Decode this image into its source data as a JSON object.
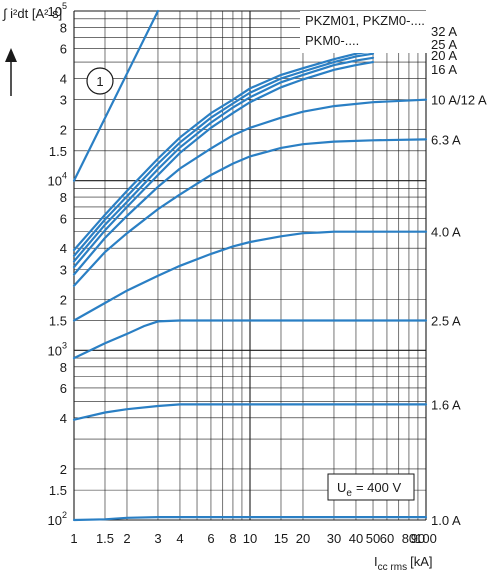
{
  "chart_data": {
    "type": "line",
    "x_scale": "log",
    "y_scale": "log",
    "xlim": [
      1,
      100
    ],
    "ylim": [
      100,
      100000
    ],
    "grid": true,
    "ylabel": "∫ i²dt [A² s]",
    "xlabel_main": "I",
    "xlabel_sub": "cc rms",
    "xlabel_unit": "[kA]",
    "legend_title_1": "PKZM01, PKZM0-....",
    "legend_title_2": "PKM0-....",
    "annotation_marker": "1",
    "ue_label_main": "U",
    "ue_label_sub": "e",
    "ue_label_value": "= 400 V",
    "x_ticks": [
      {
        "v": 1,
        "label": "1"
      },
      {
        "v": 1.5,
        "label": "1.5"
      },
      {
        "v": 2,
        "label": "2"
      },
      {
        "v": 3,
        "label": "3"
      },
      {
        "v": 4,
        "label": "4"
      },
      {
        "v": 6,
        "label": "6"
      },
      {
        "v": 8,
        "label": "8"
      },
      {
        "v": 10,
        "label": "10"
      },
      {
        "v": 15,
        "label": "15"
      },
      {
        "v": 20,
        "label": "20"
      },
      {
        "v": 30,
        "label": "30"
      },
      {
        "v": 40,
        "label": "40"
      },
      {
        "v": 50,
        "label": "50"
      },
      {
        "v": 60,
        "label": "60"
      },
      {
        "v": 80,
        "label": "80"
      },
      {
        "v": 90,
        "label": "90"
      },
      {
        "v": 100,
        "label": "100"
      }
    ],
    "y_ticks": [
      {
        "v": 100,
        "base": "10",
        "exp": "2"
      },
      {
        "v": 150,
        "label": "1.5"
      },
      {
        "v": 200,
        "label": "2"
      },
      {
        "v": 400,
        "label": "4"
      },
      {
        "v": 600,
        "label": "6"
      },
      {
        "v": 800,
        "label": "8"
      },
      {
        "v": 1000,
        "base": "10",
        "exp": "3"
      },
      {
        "v": 1500,
        "label": "1.5"
      },
      {
        "v": 2000,
        "label": "2"
      },
      {
        "v": 3000,
        "label": "3"
      },
      {
        "v": 4000,
        "label": "4"
      },
      {
        "v": 6000,
        "label": "6"
      },
      {
        "v": 8000,
        "label": "8"
      },
      {
        "v": 10000,
        "base": "10",
        "exp": "4"
      },
      {
        "v": 15000,
        "label": "1.5"
      },
      {
        "v": 20000,
        "label": "2"
      },
      {
        "v": 30000,
        "label": "3"
      },
      {
        "v": 40000,
        "label": "4"
      },
      {
        "v": 60000,
        "label": "6"
      },
      {
        "v": 80000,
        "label": "8"
      },
      {
        "v": 100000,
        "base": "10",
        "exp": "5"
      }
    ],
    "series": [
      {
        "name": "32 A",
        "label_y": 76000,
        "points": [
          [
            1,
            3900
          ],
          [
            1.5,
            6300
          ],
          [
            2,
            8700
          ],
          [
            3,
            13500
          ],
          [
            4,
            18000
          ],
          [
            6,
            25000
          ],
          [
            8,
            30000
          ],
          [
            10,
            35000
          ],
          [
            15,
            42000
          ],
          [
            20,
            46000
          ],
          [
            30,
            52000
          ],
          [
            40,
            56000
          ],
          [
            50,
            58000
          ]
        ]
      },
      {
        "name": "25 A",
        "label_y": 64000,
        "points": [
          [
            1,
            3600
          ],
          [
            1.5,
            5900
          ],
          [
            2,
            8100
          ],
          [
            3,
            12600
          ],
          [
            4,
            16800
          ],
          [
            6,
            23500
          ],
          [
            8,
            28500
          ],
          [
            10,
            33000
          ],
          [
            15,
            40000
          ],
          [
            20,
            44000
          ],
          [
            30,
            50000
          ],
          [
            40,
            54000
          ],
          [
            50,
            56000
          ]
        ]
      },
      {
        "name": "20 A",
        "label_y": 55000,
        "points": [
          [
            1,
            3350
          ],
          [
            1.5,
            5500
          ],
          [
            2,
            7500
          ],
          [
            3,
            11700
          ],
          [
            4,
            15700
          ],
          [
            6,
            22000
          ],
          [
            8,
            27000
          ],
          [
            10,
            31000
          ],
          [
            15,
            38000
          ],
          [
            20,
            42000
          ],
          [
            30,
            48000
          ],
          [
            40,
            51000
          ],
          [
            50,
            53000
          ]
        ]
      },
      {
        "name": "16 A",
        "label_y": 45500,
        "points": [
          [
            1,
            3100
          ],
          [
            1.5,
            5100
          ],
          [
            2,
            7000
          ],
          [
            3,
            10800
          ],
          [
            4,
            14600
          ],
          [
            6,
            20500
          ],
          [
            8,
            25000
          ],
          [
            10,
            29000
          ],
          [
            15,
            35500
          ],
          [
            20,
            39500
          ],
          [
            30,
            45000
          ],
          [
            40,
            48000
          ],
          [
            50,
            50000
          ]
        ]
      },
      {
        "name": "10 A/12 A",
        "label_y": 30000,
        "points": [
          [
            1,
            2800
          ],
          [
            1.5,
            4600
          ],
          [
            2,
            6200
          ],
          [
            3,
            9200
          ],
          [
            4,
            11800
          ],
          [
            6,
            15500
          ],
          [
            8,
            18500
          ],
          [
            10,
            20500
          ],
          [
            15,
            23500
          ],
          [
            20,
            25500
          ],
          [
            30,
            27500
          ],
          [
            50,
            29000
          ],
          [
            100,
            30000
          ]
        ]
      },
      {
        "name": "6.3 A",
        "label_y": 17500,
        "points": [
          [
            1,
            2400
          ],
          [
            1.5,
            3800
          ],
          [
            2,
            4900
          ],
          [
            3,
            6800
          ],
          [
            4,
            8300
          ],
          [
            6,
            10800
          ],
          [
            8,
            12600
          ],
          [
            10,
            13900
          ],
          [
            15,
            15600
          ],
          [
            20,
            16400
          ],
          [
            30,
            17000
          ],
          [
            50,
            17300
          ],
          [
            100,
            17500
          ]
        ]
      },
      {
        "name": "4.0 A",
        "label_y": 5000,
        "points": [
          [
            1,
            1500
          ],
          [
            1.5,
            1900
          ],
          [
            2,
            2250
          ],
          [
            3,
            2750
          ],
          [
            4,
            3150
          ],
          [
            6,
            3700
          ],
          [
            8,
            4100
          ],
          [
            10,
            4350
          ],
          [
            15,
            4700
          ],
          [
            20,
            4900
          ],
          [
            25,
            4950
          ],
          [
            30,
            5000
          ],
          [
            100,
            5000
          ]
        ]
      },
      {
        "name": "2.5 A",
        "label_y": 1500,
        "points": [
          [
            1,
            900
          ],
          [
            1.5,
            1100
          ],
          [
            2,
            1250
          ],
          [
            2.5,
            1390
          ],
          [
            3,
            1480
          ],
          [
            4,
            1500
          ],
          [
            100,
            1500
          ]
        ]
      },
      {
        "name": "1.6 A",
        "label_y": 480,
        "points": [
          [
            1,
            390
          ],
          [
            1.5,
            430
          ],
          [
            2,
            450
          ],
          [
            3,
            470
          ],
          [
            4,
            480
          ],
          [
            100,
            480
          ]
        ]
      },
      {
        "name": "1.0 A",
        "label_y": 100,
        "points": [
          [
            1,
            100
          ],
          [
            1.5,
            101
          ],
          [
            2,
            103
          ],
          [
            3,
            104
          ],
          [
            100,
            104
          ]
        ]
      }
    ],
    "reference_line": {
      "label": "1",
      "points": [
        [
          1,
          10000
        ],
        [
          3,
          100000
        ]
      ]
    }
  }
}
